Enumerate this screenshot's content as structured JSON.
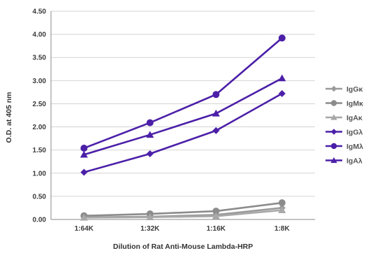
{
  "chart_data": {
    "type": "line",
    "title": "",
    "xlabel": "Dilution of Rat Anti-Mouse Lambda-HRP",
    "ylabel": "O.D. at 405 nm",
    "categories": [
      "1:64K",
      "1:32K",
      "1:16K",
      "1:8K"
    ],
    "ylim": [
      0,
      4.5
    ],
    "yticks": [
      "0.00",
      "0.50",
      "1.00",
      "1.50",
      "2.00",
      "2.50",
      "3.00",
      "3.50",
      "4.00",
      "4.50"
    ],
    "grid": true,
    "legend_position": "right",
    "series": [
      {
        "name": "IgGκ",
        "values": [
          0.05,
          0.06,
          0.1,
          0.25
        ],
        "color": "#9a9a9a",
        "marker": "diamond"
      },
      {
        "name": "IgMκ",
        "values": [
          0.08,
          0.12,
          0.18,
          0.36
        ],
        "color": "#8c8c8c",
        "marker": "circle"
      },
      {
        "name": "IgAκ",
        "values": [
          0.04,
          0.05,
          0.07,
          0.2
        ],
        "color": "#a8a8a8",
        "marker": "triangle"
      },
      {
        "name": "IgGλ",
        "values": [
          1.02,
          1.42,
          1.92,
          2.72
        ],
        "color": "#4b1fa8",
        "marker": "diamond"
      },
      {
        "name": "IgMλ",
        "values": [
          1.54,
          2.09,
          2.7,
          3.92
        ],
        "color": "#4b1fa8",
        "marker": "circle"
      },
      {
        "name": "IgAλ",
        "values": [
          1.4,
          1.83,
          2.29,
          3.05
        ],
        "color": "#4b1fa8",
        "marker": "triangle"
      }
    ]
  }
}
